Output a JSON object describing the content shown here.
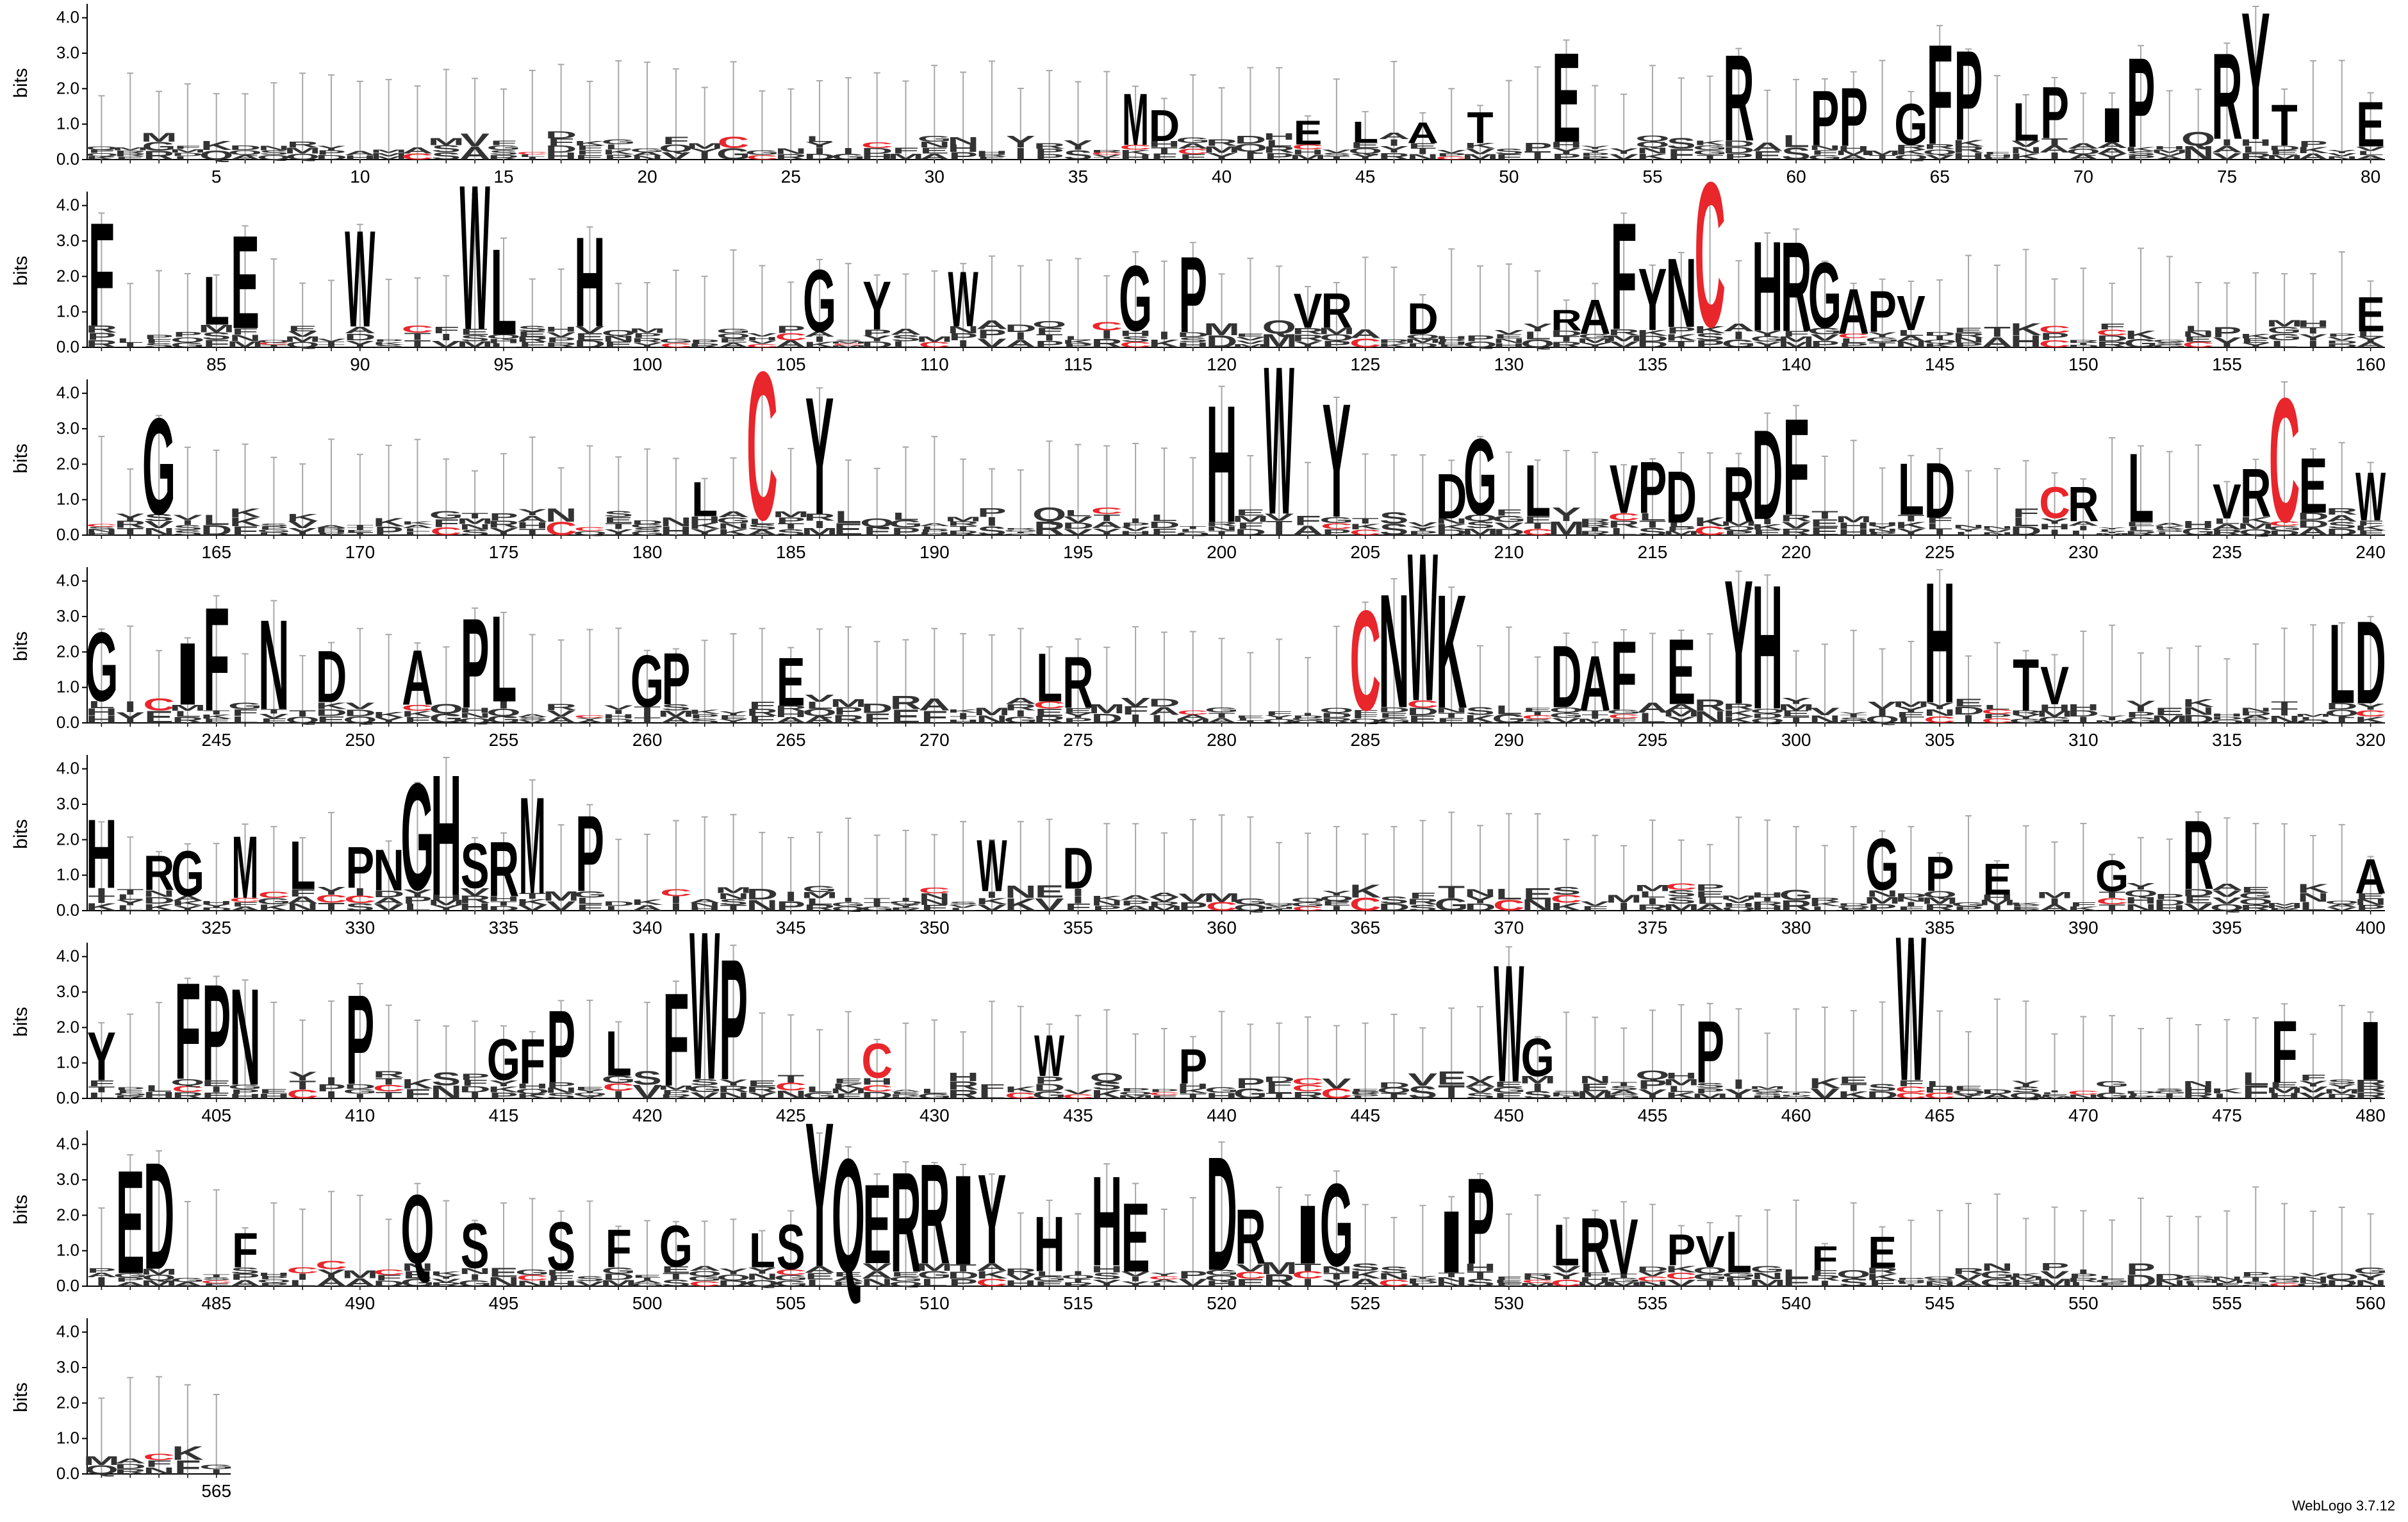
{
  "chart_data": {
    "type": "sequence-logo",
    "ylabel": "bits",
    "yticks": [
      "0.0",
      "1.0",
      "2.0",
      "3.0",
      "4.0"
    ],
    "ymax": 4.32,
    "positions_per_row": 80,
    "total_positions": 565,
    "xtick_step": 5,
    "colors": {
      "default": "#000000",
      "cysteine": "#e8262b",
      "errorbar": "#a8a8a8"
    },
    "prominent_letters": [
      {
        "pos": 37,
        "letter": "M",
        "bits": 1.5
      },
      {
        "pos": 38,
        "letter": "D",
        "bits": 0.9
      },
      {
        "pos": 43,
        "letter": "E",
        "bits": 0.7
      },
      {
        "pos": 45,
        "letter": "L",
        "bits": 0.6
      },
      {
        "pos": 47,
        "letter": "A",
        "bits": 0.6
      },
      {
        "pos": 49,
        "letter": "T",
        "bits": 0.9
      },
      {
        "pos": 52,
        "letter": "E",
        "bits": 2.6
      },
      {
        "pos": 58,
        "letter": "R",
        "bits": 2.5
      },
      {
        "pos": 61,
        "letter": "P",
        "bits": 1.6
      },
      {
        "pos": 62,
        "letter": "P",
        "bits": 1.7
      },
      {
        "pos": 64,
        "letter": "G",
        "bits": 1.2
      },
      {
        "pos": 65,
        "letter": "F",
        "bits": 2.9
      },
      {
        "pos": 66,
        "letter": "P",
        "bits": 2.6
      },
      {
        "pos": 68,
        "letter": "L",
        "bits": 1.1
      },
      {
        "pos": 69,
        "letter": "P",
        "bits": 1.5
      },
      {
        "pos": 71,
        "letter": "I",
        "bits": 1.0
      },
      {
        "pos": 72,
        "letter": "P",
        "bits": 2.6
      },
      {
        "pos": 75,
        "letter": "R",
        "bits": 2.5
      },
      {
        "pos": 76,
        "letter": "Y",
        "bits": 3.7
      },
      {
        "pos": 77,
        "letter": "T",
        "bits": 1.2
      },
      {
        "pos": 80,
        "letter": "E",
        "bits": 1.3
      },
      {
        "pos": 81,
        "letter": "F",
        "bits": 3.0
      },
      {
        "pos": 85,
        "letter": "L",
        "bits": 1.4
      },
      {
        "pos": 86,
        "letter": "E",
        "bits": 2.7
      },
      {
        "pos": 90,
        "letter": "W",
        "bits": 2.8
      },
      {
        "pos": 94,
        "letter": "W",
        "bits": 4.2
      },
      {
        "pos": 95,
        "letter": "L",
        "bits": 2.5
      },
      {
        "pos": 98,
        "letter": "H",
        "bits": 2.6
      },
      {
        "pos": 106,
        "letter": "G",
        "bits": 1.8
      },
      {
        "pos": 108,
        "letter": "Y",
        "bits": 1.4
      },
      {
        "pos": 111,
        "letter": "W",
        "bits": 1.6
      },
      {
        "pos": 117,
        "letter": "G",
        "bits": 1.9
      },
      {
        "pos": 119,
        "letter": "P",
        "bits": 2.2
      },
      {
        "pos": 123,
        "letter": "V",
        "bits": 1.0
      },
      {
        "pos": 124,
        "letter": "R",
        "bits": 1.0
      },
      {
        "pos": 127,
        "letter": "D",
        "bits": 0.9
      },
      {
        "pos": 132,
        "letter": "R",
        "bits": 0.6
      },
      {
        "pos": 133,
        "letter": "A",
        "bits": 1.0
      },
      {
        "pos": 134,
        "letter": "F",
        "bits": 3.1
      },
      {
        "pos": 135,
        "letter": "Y",
        "bits": 1.8
      },
      {
        "pos": 136,
        "letter": "N",
        "bits": 2.0
      },
      {
        "pos": 137,
        "letter": "C",
        "bits": 4.2
      },
      {
        "pos": 139,
        "letter": "H",
        "bits": 2.6
      },
      {
        "pos": 140,
        "letter": "R",
        "bits": 2.6
      },
      {
        "pos": 141,
        "letter": "G",
        "bits": 1.9
      },
      {
        "pos": 142,
        "letter": "A",
        "bits": 1.3
      },
      {
        "pos": 143,
        "letter": "P",
        "bits": 1.2
      },
      {
        "pos": 144,
        "letter": "V",
        "bits": 1.0
      },
      {
        "pos": 160,
        "letter": "E",
        "bits": 1.0
      },
      {
        "pos": 163,
        "letter": "G",
        "bits": 2.8
      },
      {
        "pos": 182,
        "letter": "L",
        "bits": 1.0
      },
      {
        "pos": 184,
        "letter": "C",
        "bits": 4.3
      },
      {
        "pos": 186,
        "letter": "Y",
        "bits": 3.4
      },
      {
        "pos": 200,
        "letter": "H",
        "bits": 3.4
      },
      {
        "pos": 202,
        "letter": "W",
        "bits": 4.3
      },
      {
        "pos": 204,
        "letter": "Y",
        "bits": 3.3
      },
      {
        "pos": 208,
        "letter": "D",
        "bits": 1.3
      },
      {
        "pos": 209,
        "letter": "G",
        "bits": 2.2
      },
      {
        "pos": 211,
        "letter": "L",
        "bits": 1.5
      },
      {
        "pos": 214,
        "letter": "V",
        "bits": 1.4
      },
      {
        "pos": 215,
        "letter": "P",
        "bits": 1.5
      },
      {
        "pos": 216,
        "letter": "D",
        "bits": 1.5
      },
      {
        "pos": 218,
        "letter": "R",
        "bits": 1.6
      },
      {
        "pos": 219,
        "letter": "D",
        "bits": 2.6
      },
      {
        "pos": 220,
        "letter": "F",
        "bits": 2.8
      },
      {
        "pos": 224,
        "letter": "L",
        "bits": 1.5
      },
      {
        "pos": 225,
        "letter": "D",
        "bits": 1.6
      },
      {
        "pos": 229,
        "letter": "C",
        "bits": 0.9
      },
      {
        "pos": 230,
        "letter": "R",
        "bits": 1.0
      },
      {
        "pos": 232,
        "letter": "L",
        "bits": 2.0
      },
      {
        "pos": 235,
        "letter": "V",
        "bits": 1.0
      },
      {
        "pos": 236,
        "letter": "R",
        "bits": 1.4
      },
      {
        "pos": 237,
        "letter": "C",
        "bits": 3.6
      },
      {
        "pos": 238,
        "letter": "E",
        "bits": 1.6
      },
      {
        "pos": 240,
        "letter": "W",
        "bits": 1.4
      },
      {
        "pos": 241,
        "letter": "G",
        "bits": 2.0
      },
      {
        "pos": 244,
        "letter": "I",
        "bits": 1.8
      },
      {
        "pos": 245,
        "letter": "F",
        "bits": 3.0
      },
      {
        "pos": 247,
        "letter": "N",
        "bits": 2.6
      },
      {
        "pos": 249,
        "letter": "D",
        "bits": 1.5
      },
      {
        "pos": 252,
        "letter": "A",
        "bits": 1.6
      },
      {
        "pos": 254,
        "letter": "P",
        "bits": 2.6
      },
      {
        "pos": 255,
        "letter": "L",
        "bits": 2.5
      },
      {
        "pos": 260,
        "letter": "G",
        "bits": 1.5
      },
      {
        "pos": 261,
        "letter": "P",
        "bits": 1.5
      },
      {
        "pos": 265,
        "letter": "E",
        "bits": 1.4
      },
      {
        "pos": 274,
        "letter": "L",
        "bits": 1.4
      },
      {
        "pos": 275,
        "letter": "R",
        "bits": 1.5
      },
      {
        "pos": 285,
        "letter": "C",
        "bits": 2.9
      },
      {
        "pos": 286,
        "letter": "N",
        "bits": 3.3
      },
      {
        "pos": 287,
        "letter": "W",
        "bits": 4.3
      },
      {
        "pos": 288,
        "letter": "K",
        "bits": 3.3
      },
      {
        "pos": 292,
        "letter": "D",
        "bits": 1.8
      },
      {
        "pos": 293,
        "letter": "A",
        "bits": 1.6
      },
      {
        "pos": 294,
        "letter": "F",
        "bits": 2.0
      },
      {
        "pos": 296,
        "letter": "E",
        "bits": 1.9
      },
      {
        "pos": 298,
        "letter": "Y",
        "bits": 3.6
      },
      {
        "pos": 299,
        "letter": "H",
        "bits": 3.6
      },
      {
        "pos": 305,
        "letter": "H",
        "bits": 3.5
      },
      {
        "pos": 308,
        "letter": "T",
        "bits": 1.5
      },
      {
        "pos": 309,
        "letter": "V",
        "bits": 1.1
      },
      {
        "pos": 319,
        "letter": "L",
        "bits": 2.3
      },
      {
        "pos": 320,
        "letter": "D",
        "bits": 2.4
      },
      {
        "pos": 321,
        "letter": "H",
        "bits": 2.0
      },
      {
        "pos": 323,
        "letter": "R",
        "bits": 1.0
      },
      {
        "pos": 324,
        "letter": "G",
        "bits": 1.3
      },
      {
        "pos": 326,
        "letter": "M",
        "bits": 1.8
      },
      {
        "pos": 328,
        "letter": "L",
        "bits": 1.4
      },
      {
        "pos": 330,
        "letter": "P",
        "bits": 1.2
      },
      {
        "pos": 331,
        "letter": "N",
        "bits": 1.2
      },
      {
        "pos": 332,
        "letter": "G",
        "bits": 3.1
      },
      {
        "pos": 333,
        "letter": "H",
        "bits": 3.5
      },
      {
        "pos": 334,
        "letter": "S",
        "bits": 1.3
      },
      {
        "pos": 335,
        "letter": "R",
        "bits": 1.6
      },
      {
        "pos": 336,
        "letter": "M",
        "bits": 2.8
      },
      {
        "pos": 338,
        "letter": "P",
        "bits": 2.2
      },
      {
        "pos": 352,
        "letter": "W",
        "bits": 1.5
      },
      {
        "pos": 355,
        "letter": "D",
        "bits": 1.2
      },
      {
        "pos": 383,
        "letter": "G",
        "bits": 1.5
      },
      {
        "pos": 385,
        "letter": "P",
        "bits": 1.0
      },
      {
        "pos": 387,
        "letter": "E",
        "bits": 0.9
      },
      {
        "pos": 391,
        "letter": "G",
        "bits": 0.9
      },
      {
        "pos": 394,
        "letter": "R",
        "bits": 2.0
      },
      {
        "pos": 400,
        "letter": "A",
        "bits": 1.0
      },
      {
        "pos": 401,
        "letter": "Y",
        "bits": 1.4
      },
      {
        "pos": 404,
        "letter": "F",
        "bits": 2.8
      },
      {
        "pos": 405,
        "letter": "P",
        "bits": 2.8
      },
      {
        "pos": 406,
        "letter": "N",
        "bits": 2.8
      },
      {
        "pos": 410,
        "letter": "P",
        "bits": 2.6
      },
      {
        "pos": 415,
        "letter": "G",
        "bits": 1.2
      },
      {
        "pos": 416,
        "letter": "F",
        "bits": 1.3
      },
      {
        "pos": 417,
        "letter": "P",
        "bits": 2.1
      },
      {
        "pos": 419,
        "letter": "L",
        "bits": 1.3
      },
      {
        "pos": 421,
        "letter": "F",
        "bits": 2.7
      },
      {
        "pos": 422,
        "letter": "W",
        "bits": 4.3
      },
      {
        "pos": 423,
        "letter": "P",
        "bits": 3.5
      },
      {
        "pos": 428,
        "letter": "C",
        "bits": 1.0
      },
      {
        "pos": 434,
        "letter": "W",
        "bits": 1.2
      },
      {
        "pos": 439,
        "letter": "P",
        "bits": 1.0
      },
      {
        "pos": 450,
        "letter": "W",
        "bits": 3.4
      },
      {
        "pos": 451,
        "letter": "G",
        "bits": 1.1
      },
      {
        "pos": 457,
        "letter": "P",
        "bits": 1.8
      },
      {
        "pos": 464,
        "letter": "W",
        "bits": 4.2
      },
      {
        "pos": 477,
        "letter": "F",
        "bits": 1.8
      },
      {
        "pos": 480,
        "letter": "I",
        "bits": 1.7
      },
      {
        "pos": 482,
        "letter": "E",
        "bits": 3.0
      },
      {
        "pos": 483,
        "letter": "D",
        "bits": 3.1
      },
      {
        "pos": 486,
        "letter": "F",
        "bits": 1.0
      },
      {
        "pos": 492,
        "letter": "Q",
        "bits": 2.0
      },
      {
        "pos": 494,
        "letter": "S",
        "bits": 1.3
      },
      {
        "pos": 497,
        "letter": "S",
        "bits": 1.4
      },
      {
        "pos": 499,
        "letter": "F",
        "bits": 1.1
      },
      {
        "pos": 501,
        "letter": "G",
        "bits": 1.2
      },
      {
        "pos": 504,
        "letter": "L",
        "bits": 1.0
      },
      {
        "pos": 505,
        "letter": "S",
        "bits": 1.3
      },
      {
        "pos": 506,
        "letter": "Y",
        "bits": 4.2
      },
      {
        "pos": 507,
        "letter": "Q",
        "bits": 3.3
      },
      {
        "pos": 508,
        "letter": "E",
        "bits": 2.3
      },
      {
        "pos": 509,
        "letter": "R",
        "bits": 2.9
      },
      {
        "pos": 510,
        "letter": "R",
        "bits": 2.9
      },
      {
        "pos": 511,
        "letter": "I",
        "bits": 2.6
      },
      {
        "pos": 512,
        "letter": "Y",
        "bits": 2.6
      },
      {
        "pos": 514,
        "letter": "H",
        "bits": 1.6
      },
      {
        "pos": 516,
        "letter": "H",
        "bits": 2.6
      },
      {
        "pos": 517,
        "letter": "E",
        "bits": 2.0
      },
      {
        "pos": 520,
        "letter": "D",
        "bits": 3.3
      },
      {
        "pos": 521,
        "letter": "R",
        "bits": 1.6
      },
      {
        "pos": 523,
        "letter": "I",
        "bits": 1.7
      },
      {
        "pos": 524,
        "letter": "G",
        "bits": 2.4
      },
      {
        "pos": 528,
        "letter": "I",
        "bits": 1.8
      },
      {
        "pos": 529,
        "letter": "P",
        "bits": 2.5
      },
      {
        "pos": 532,
        "letter": "L",
        "bits": 1.2
      },
      {
        "pos": 533,
        "letter": "R",
        "bits": 1.6
      },
      {
        "pos": 534,
        "letter": "V",
        "bits": 1.6
      },
      {
        "pos": 536,
        "letter": "P",
        "bits": 0.9
      },
      {
        "pos": 537,
        "letter": "V",
        "bits": 0.9
      },
      {
        "pos": 538,
        "letter": "L",
        "bits": 1.2
      },
      {
        "pos": 541,
        "letter": "F",
        "bits": 0.7
      },
      {
        "pos": 543,
        "letter": "E",
        "bits": 0.9
      }
    ],
    "footer": "WebLogo 3.7.12"
  }
}
